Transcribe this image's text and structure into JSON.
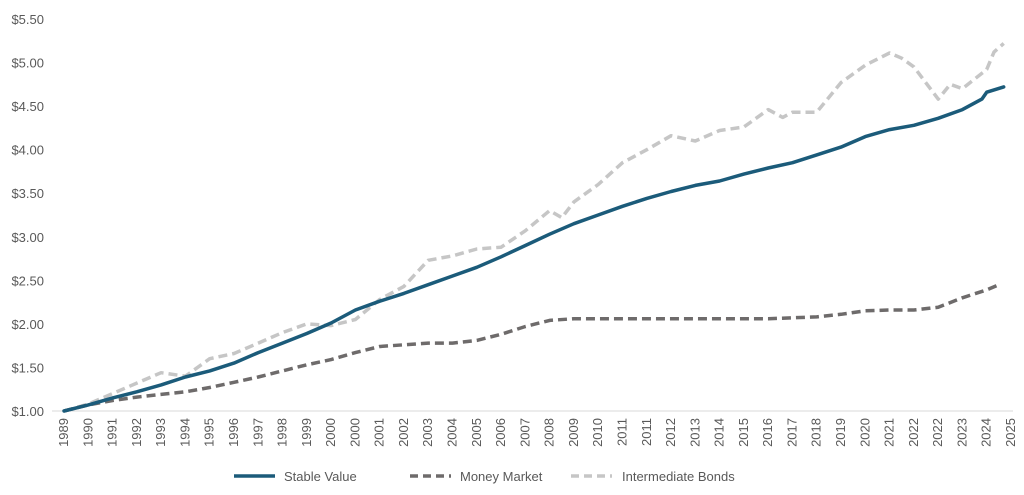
{
  "chart_data": {
    "type": "line",
    "title": "",
    "xlabel": "",
    "ylabel": "",
    "ylim": [
      1.0,
      5.5
    ],
    "y_ticks": [
      "$1.00",
      "$1.50",
      "$2.00",
      "$2.50",
      "$3.00",
      "$3.50",
      "$4.00",
      "$4.50",
      "$5.00",
      "$5.50"
    ],
    "y_tick_values": [
      1.0,
      1.5,
      2.0,
      2.5,
      3.0,
      3.5,
      4.0,
      4.5,
      5.0,
      5.5
    ],
    "x_ticks": [
      "1989",
      "1990",
      "1991",
      "1992",
      "1993",
      "1994",
      "1995",
      "1996",
      "1997",
      "1998",
      "1999",
      "2000",
      "2000",
      "2001",
      "2002",
      "2003",
      "2004",
      "2005",
      "2006",
      "2007",
      "2008",
      "2009",
      "2010",
      "2011",
      "2011",
      "2012",
      "2013",
      "2014",
      "2015",
      "2016",
      "2017",
      "2018",
      "2019",
      "2020",
      "2021",
      "2022",
      "2022",
      "2023",
      "2024",
      "2025"
    ],
    "grid": false,
    "legend_position": "bottom",
    "series": [
      {
        "name": "Stable Value",
        "color": "#1b5b7a",
        "style": "solid",
        "x": [
          0,
          1,
          2,
          3,
          4,
          5,
          6,
          7,
          8,
          9,
          10,
          11,
          12,
          13,
          14,
          15,
          16,
          17,
          18,
          19,
          20,
          21,
          22,
          23,
          24,
          25,
          26,
          27,
          28,
          29,
          30,
          31,
          32,
          33,
          34,
          35,
          36,
          37,
          37.8,
          38,
          38.7
        ],
        "values": [
          1.0,
          1.07,
          1.15,
          1.22,
          1.3,
          1.39,
          1.46,
          1.55,
          1.67,
          1.78,
          1.89,
          2.01,
          2.16,
          2.26,
          2.35,
          2.45,
          2.55,
          2.65,
          2.77,
          2.9,
          3.03,
          3.15,
          3.25,
          3.35,
          3.44,
          3.52,
          3.59,
          3.64,
          3.72,
          3.79,
          3.85,
          3.94,
          4.03,
          4.15,
          4.23,
          4.28,
          4.36,
          4.46,
          4.58,
          4.66,
          4.72
        ]
      },
      {
        "name": "Money Market",
        "color": "#6e6b6b",
        "style": "dashed",
        "x": [
          0,
          1,
          2,
          3,
          4,
          5,
          6,
          7,
          8,
          9,
          10,
          11,
          12,
          13,
          14,
          15,
          16,
          17,
          18,
          19,
          20,
          21,
          22,
          23,
          24,
          25,
          26,
          27,
          28,
          29,
          30,
          31,
          32,
          33,
          34,
          35,
          36,
          37,
          38,
          38.5
        ],
        "values": [
          1.0,
          1.07,
          1.12,
          1.16,
          1.19,
          1.22,
          1.27,
          1.33,
          1.39,
          1.46,
          1.53,
          1.59,
          1.67,
          1.74,
          1.76,
          1.78,
          1.78,
          1.81,
          1.88,
          1.97,
          2.04,
          2.06,
          2.06,
          2.06,
          2.06,
          2.06,
          2.06,
          2.06,
          2.06,
          2.06,
          2.07,
          2.08,
          2.11,
          2.15,
          2.16,
          2.16,
          2.19,
          2.3,
          2.39,
          2.45
        ]
      },
      {
        "name": "Intermediate Bonds",
        "color": "#c6c6c6",
        "style": "dashed",
        "x": [
          0,
          1,
          2,
          3,
          4,
          5,
          6,
          7,
          8,
          9,
          10,
          11,
          12,
          13,
          14,
          15,
          16,
          17,
          18,
          19,
          20,
          20.5,
          21,
          22,
          23,
          24,
          25,
          26,
          27,
          28,
          29,
          29.6,
          30,
          31,
          32,
          33,
          34,
          34.5,
          35,
          36,
          36.5,
          37,
          38,
          38.3,
          38.7
        ],
        "values": [
          1.0,
          1.08,
          1.2,
          1.32,
          1.44,
          1.4,
          1.6,
          1.66,
          1.78,
          1.9,
          2.0,
          1.98,
          2.05,
          2.28,
          2.43,
          2.73,
          2.78,
          2.86,
          2.88,
          3.07,
          3.3,
          3.22,
          3.4,
          3.6,
          3.85,
          4.0,
          4.16,
          4.1,
          4.22,
          4.26,
          4.46,
          4.37,
          4.43,
          4.43,
          4.77,
          4.97,
          5.11,
          5.05,
          4.95,
          4.58,
          4.75,
          4.7,
          4.92,
          5.12,
          5.22
        ]
      }
    ]
  }
}
